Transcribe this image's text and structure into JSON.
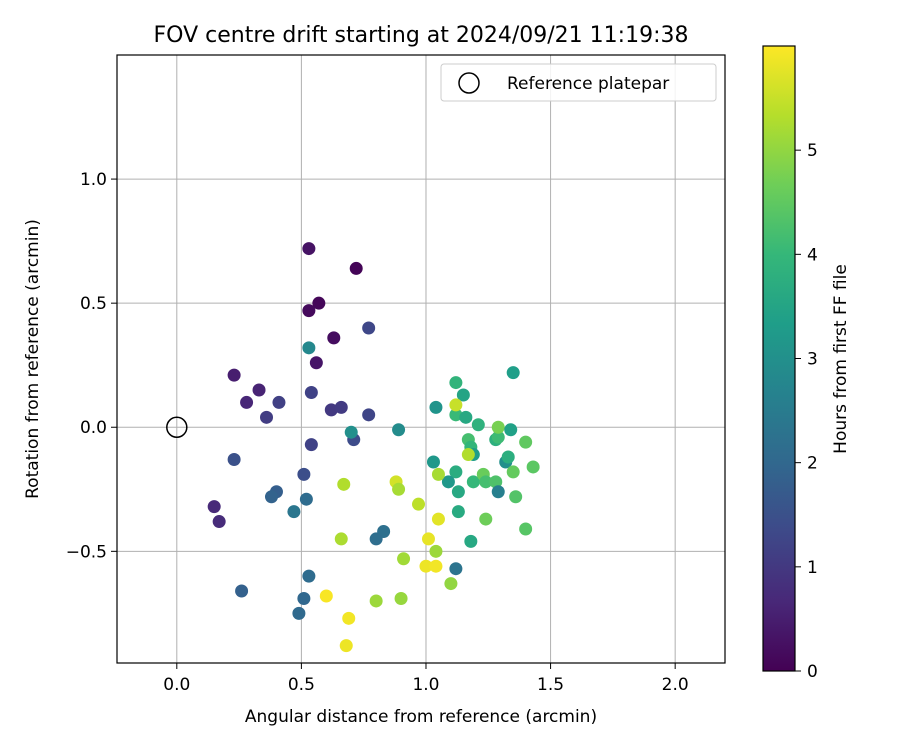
{
  "chart_data": {
    "type": "scatter",
    "title": "FOV centre drift starting at 2024/09/21 11:19:38",
    "xlabel": "Angular distance from reference (arcmin)",
    "ylabel": "Rotation from reference (arcmin)",
    "xlim": [
      -0.24,
      2.2
    ],
    "ylim": [
      -0.95,
      1.5
    ],
    "xticks": [
      0.0,
      0.5,
      1.0,
      1.5,
      2.0
    ],
    "xtick_labels": [
      "0.0",
      "0.5",
      "1.0",
      "1.5",
      "2.0"
    ],
    "yticks": [
      -0.5,
      0.0,
      0.5,
      1.0
    ],
    "ytick_labels": [
      "−0.5",
      "0.0",
      "0.5",
      "1.0"
    ],
    "grid": true,
    "legend": {
      "label": "Reference platepar",
      "position": "top-right"
    },
    "reference_point": {
      "x": 0.0,
      "y": 0.0
    },
    "colorbar": {
      "label": "Hours from first FF file",
      "colormap": "viridis",
      "range": [
        0,
        6
      ],
      "ticks": [
        0,
        1,
        2,
        3,
        4,
        5
      ],
      "tick_labels": [
        "0",
        "1",
        "2",
        "3",
        "4",
        "5"
      ]
    },
    "points": [
      {
        "x": 0.53,
        "y": 0.72,
        "h": 0.3
      },
      {
        "x": 0.72,
        "y": 0.64,
        "h": 0.05
      },
      {
        "x": 0.57,
        "y": 0.5,
        "h": 0.1
      },
      {
        "x": 0.53,
        "y": 0.47,
        "h": 0.15
      },
      {
        "x": 0.63,
        "y": 0.36,
        "h": 0.2
      },
      {
        "x": 0.56,
        "y": 0.26,
        "h": 0.35
      },
      {
        "x": 0.23,
        "y": 0.21,
        "h": 0.5
      },
      {
        "x": 0.33,
        "y": 0.15,
        "h": 0.6
      },
      {
        "x": 0.28,
        "y": 0.1,
        "h": 0.65
      },
      {
        "x": 0.36,
        "y": 0.04,
        "h": 1.1
      },
      {
        "x": 0.41,
        "y": 0.1,
        "h": 1.15
      },
      {
        "x": 0.54,
        "y": 0.14,
        "h": 1.2
      },
      {
        "x": 0.77,
        "y": 0.4,
        "h": 1.3
      },
      {
        "x": 0.62,
        "y": 0.07,
        "h": 1.0
      },
      {
        "x": 0.66,
        "y": 0.08,
        "h": 1.05
      },
      {
        "x": 0.77,
        "y": 0.05,
        "h": 1.25
      },
      {
        "x": 0.54,
        "y": -0.07,
        "h": 1.2
      },
      {
        "x": 0.71,
        "y": -0.05,
        "h": 1.4
      },
      {
        "x": 0.23,
        "y": -0.13,
        "h": 1.5
      },
      {
        "x": 0.15,
        "y": -0.32,
        "h": 0.7
      },
      {
        "x": 0.17,
        "y": -0.38,
        "h": 0.75
      },
      {
        "x": 0.51,
        "y": -0.19,
        "h": 1.45
      },
      {
        "x": 0.4,
        "y": -0.26,
        "h": 1.8
      },
      {
        "x": 0.38,
        "y": -0.28,
        "h": 1.9
      },
      {
        "x": 0.52,
        "y": -0.29,
        "h": 2.1
      },
      {
        "x": 0.47,
        "y": -0.34,
        "h": 2.35
      },
      {
        "x": 0.53,
        "y": 0.32,
        "h": 2.8
      },
      {
        "x": 0.7,
        "y": -0.02,
        "h": 3.0
      },
      {
        "x": 0.89,
        "y": -0.01,
        "h": 2.9
      },
      {
        "x": 0.83,
        "y": -0.42,
        "h": 2.2
      },
      {
        "x": 0.8,
        "y": -0.45,
        "h": 2.15
      },
      {
        "x": 0.26,
        "y": -0.66,
        "h": 1.85
      },
      {
        "x": 0.53,
        "y": -0.6,
        "h": 2.1
      },
      {
        "x": 0.51,
        "y": -0.69,
        "h": 2.0
      },
      {
        "x": 0.49,
        "y": -0.75,
        "h": 2.05
      },
      {
        "x": 1.12,
        "y": -0.57,
        "h": 2.3
      },
      {
        "x": 1.18,
        "y": -0.46,
        "h": 3.6
      },
      {
        "x": 1.04,
        "y": 0.08,
        "h": 3.1
      },
      {
        "x": 1.03,
        "y": -0.14,
        "h": 3.2
      },
      {
        "x": 1.12,
        "y": 0.18,
        "h": 3.9
      },
      {
        "x": 1.15,
        "y": 0.13,
        "h": 3.5
      },
      {
        "x": 1.12,
        "y": 0.05,
        "h": 4.05
      },
      {
        "x": 1.16,
        "y": 0.04,
        "h": 3.6
      },
      {
        "x": 1.17,
        "y": -0.05,
        "h": 4.2
      },
      {
        "x": 1.18,
        "y": -0.08,
        "h": 3.95
      },
      {
        "x": 1.19,
        "y": -0.11,
        "h": 3.3
      },
      {
        "x": 1.21,
        "y": 0.01,
        "h": 3.85
      },
      {
        "x": 1.12,
        "y": -0.18,
        "h": 3.7
      },
      {
        "x": 1.09,
        "y": -0.22,
        "h": 3.2
      },
      {
        "x": 1.13,
        "y": -0.26,
        "h": 3.6
      },
      {
        "x": 1.13,
        "y": -0.34,
        "h": 3.65
      },
      {
        "x": 1.19,
        "y": -0.22,
        "h": 4.0
      },
      {
        "x": 1.23,
        "y": -0.19,
        "h": 4.6
      },
      {
        "x": 1.24,
        "y": -0.22,
        "h": 4.2
      },
      {
        "x": 1.28,
        "y": -0.05,
        "h": 3.8
      },
      {
        "x": 1.29,
        "y": -0.04,
        "h": 4.1
      },
      {
        "x": 1.29,
        "y": 0.0,
        "h": 4.75
      },
      {
        "x": 1.32,
        "y": -0.14,
        "h": 3.0
      },
      {
        "x": 1.33,
        "y": -0.12,
        "h": 3.75
      },
      {
        "x": 1.34,
        "y": -0.01,
        "h": 3.4
      },
      {
        "x": 1.35,
        "y": 0.22,
        "h": 3.35
      },
      {
        "x": 1.28,
        "y": -0.22,
        "h": 4.3
      },
      {
        "x": 1.29,
        "y": -0.26,
        "h": 2.6
      },
      {
        "x": 1.35,
        "y": -0.18,
        "h": 4.55
      },
      {
        "x": 1.36,
        "y": -0.28,
        "h": 4.35
      },
      {
        "x": 1.4,
        "y": -0.06,
        "h": 4.5
      },
      {
        "x": 1.43,
        "y": -0.16,
        "h": 4.45
      },
      {
        "x": 1.4,
        "y": -0.41,
        "h": 4.4
      },
      {
        "x": 1.24,
        "y": -0.37,
        "h": 4.65
      },
      {
        "x": 1.12,
        "y": 0.09,
        "h": 5.5
      },
      {
        "x": 1.17,
        "y": -0.11,
        "h": 5.3
      },
      {
        "x": 1.05,
        "y": -0.19,
        "h": 5.2
      },
      {
        "x": 0.97,
        "y": -0.31,
        "h": 5.4
      },
      {
        "x": 0.88,
        "y": -0.22,
        "h": 5.6
      },
      {
        "x": 0.89,
        "y": -0.25,
        "h": 5.2
      },
      {
        "x": 0.67,
        "y": -0.23,
        "h": 5.3
      },
      {
        "x": 0.66,
        "y": -0.45,
        "h": 5.25
      },
      {
        "x": 1.05,
        "y": -0.37,
        "h": 5.75
      },
      {
        "x": 1.01,
        "y": -0.45,
        "h": 5.8
      },
      {
        "x": 1.04,
        "y": -0.5,
        "h": 5.1
      },
      {
        "x": 0.91,
        "y": -0.53,
        "h": 5.15
      },
      {
        "x": 1.0,
        "y": -0.56,
        "h": 5.85
      },
      {
        "x": 1.04,
        "y": -0.56,
        "h": 5.9
      },
      {
        "x": 1.1,
        "y": -0.63,
        "h": 5.0
      },
      {
        "x": 0.9,
        "y": -0.69,
        "h": 5.05
      },
      {
        "x": 0.8,
        "y": -0.7,
        "h": 5.1
      },
      {
        "x": 0.6,
        "y": -0.68,
        "h": 5.95
      },
      {
        "x": 0.69,
        "y": -0.77,
        "h": 5.9
      },
      {
        "x": 0.68,
        "y": -0.88,
        "h": 5.85
      }
    ]
  }
}
